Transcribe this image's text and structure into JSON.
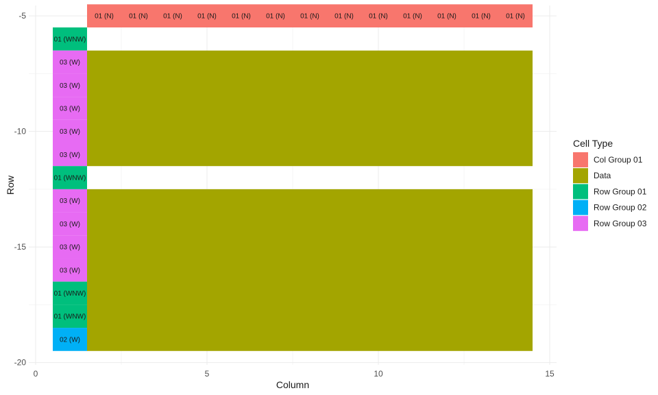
{
  "chart_data": {
    "type": "heatmap",
    "xlabel": "Column",
    "ylabel": "Row",
    "xlim": [
      -0.2,
      15.2
    ],
    "ylim": [
      -20.1,
      -4.55
    ],
    "x_ticks": [
      0,
      5,
      10,
      15
    ],
    "y_ticks": [
      -5,
      -10,
      -15,
      -20
    ],
    "grid": true,
    "legend": {
      "title": "Cell Type",
      "position": "right",
      "entries": [
        {
          "name": "Col Group 01",
          "color": "#F8766D"
        },
        {
          "name": "Data",
          "color": "#A3A500"
        },
        {
          "name": "Row Group 01",
          "color": "#00BF7D"
        },
        {
          "name": "Row Group 02",
          "color": "#00B0F6"
        },
        {
          "name": "Row Group 03",
          "color": "#E76BF3"
        }
      ]
    },
    "tiles": [
      {
        "x": 2,
        "y": -5,
        "type": "Col Group 01",
        "label": "01 (N)"
      },
      {
        "x": 3,
        "y": -5,
        "type": "Col Group 01",
        "label": "01 (N)"
      },
      {
        "x": 4,
        "y": -5,
        "type": "Col Group 01",
        "label": "01 (N)"
      },
      {
        "x": 5,
        "y": -5,
        "type": "Col Group 01",
        "label": "01 (N)"
      },
      {
        "x": 6,
        "y": -5,
        "type": "Col Group 01",
        "label": "01 (N)"
      },
      {
        "x": 7,
        "y": -5,
        "type": "Col Group 01",
        "label": "01 (N)"
      },
      {
        "x": 8,
        "y": -5,
        "type": "Col Group 01",
        "label": "01 (N)"
      },
      {
        "x": 9,
        "y": -5,
        "type": "Col Group 01",
        "label": "01 (N)"
      },
      {
        "x": 10,
        "y": -5,
        "type": "Col Group 01",
        "label": "01 (N)"
      },
      {
        "x": 11,
        "y": -5,
        "type": "Col Group 01",
        "label": "01 (N)"
      },
      {
        "x": 12,
        "y": -5,
        "type": "Col Group 01",
        "label": "01 (N)"
      },
      {
        "x": 13,
        "y": -5,
        "type": "Col Group 01",
        "label": "01 (N)"
      },
      {
        "x": 14,
        "y": -5,
        "type": "Col Group 01",
        "label": "01 (N)"
      },
      {
        "x": 1,
        "y": -6,
        "type": "Row Group 01",
        "label": "01 (WNW)"
      },
      {
        "x": 1,
        "y": -7,
        "type": "Row Group 03",
        "label": "03 (W)"
      },
      {
        "x": 1,
        "y": -8,
        "type": "Row Group 03",
        "label": "03 (W)"
      },
      {
        "x": 1,
        "y": -9,
        "type": "Row Group 03",
        "label": "03 (W)"
      },
      {
        "x": 1,
        "y": -10,
        "type": "Row Group 03",
        "label": "03 (W)"
      },
      {
        "x": 1,
        "y": -11,
        "type": "Row Group 03",
        "label": "03 (W)"
      },
      {
        "x": 1,
        "y": -12,
        "type": "Row Group 01",
        "label": "01 (WNW)"
      },
      {
        "x": 1,
        "y": -13,
        "type": "Row Group 03",
        "label": "03 (W)"
      },
      {
        "x": 1,
        "y": -14,
        "type": "Row Group 03",
        "label": "03 (W)"
      },
      {
        "x": 1,
        "y": -15,
        "type": "Row Group 03",
        "label": "03 (W)"
      },
      {
        "x": 1,
        "y": -16,
        "type": "Row Group 03",
        "label": "03 (W)"
      },
      {
        "x": 1,
        "y": -17,
        "type": "Row Group 01",
        "label": "01 (WNW)"
      },
      {
        "x": 1,
        "y": -18,
        "type": "Row Group 01",
        "label": "01 (WNW)"
      },
      {
        "x": 1,
        "y": -19,
        "type": "Row Group 02",
        "label": "02 (W)"
      }
    ],
    "data_blocks": [
      {
        "x_range": [
          2,
          14
        ],
        "y_range": [
          -11,
          -7
        ],
        "type": "Data"
      },
      {
        "x_range": [
          2,
          14
        ],
        "y_range": [
          -19,
          -13
        ],
        "type": "Data"
      }
    ]
  }
}
